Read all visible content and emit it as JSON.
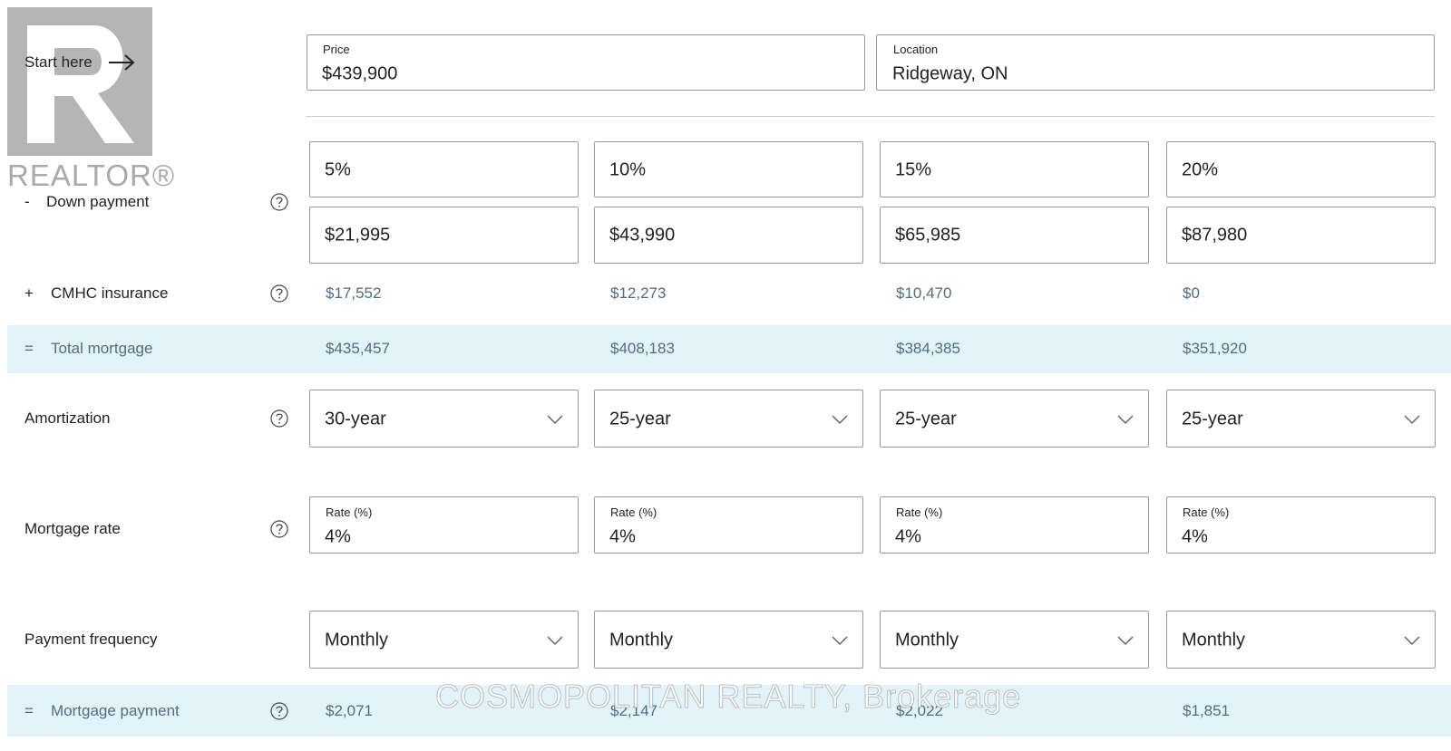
{
  "logo": "REALTOR®",
  "start_here": "Start here",
  "price": {
    "label": "Price",
    "value": "$439,900"
  },
  "location": {
    "label": "Location",
    "value": "Ridgeway, ON"
  },
  "rows": {
    "down_payment": {
      "sign": "-",
      "label": "Down payment"
    },
    "cmhc": {
      "sign": "+",
      "label": "CMHC insurance"
    },
    "total": {
      "sign": "=",
      "label": "Total mortgage"
    },
    "amortization": {
      "label": "Amortization"
    },
    "rate": {
      "label": "Mortgage rate"
    },
    "frequency": {
      "label": "Payment frequency"
    },
    "payment": {
      "sign": "=",
      "label": "Mortgage payment"
    }
  },
  "columns": [
    {
      "down_percent": "5%",
      "down_amount": "$21,995",
      "cmhc": "$17,552",
      "total": "$435,457",
      "amortization": "30-year",
      "rate_label": "Rate (%)",
      "rate": "4%",
      "frequency": "Monthly",
      "payment": "$2,071"
    },
    {
      "down_percent": "10%",
      "down_amount": "$43,990",
      "cmhc": "$12,273",
      "total": "$408,183",
      "amortization": "25-year",
      "rate_label": "Rate (%)",
      "rate": "4%",
      "frequency": "Monthly",
      "payment": "$2,147"
    },
    {
      "down_percent": "15%",
      "down_amount": "$65,985",
      "cmhc": "$10,470",
      "total": "$384,385",
      "amortization": "25-year",
      "rate_label": "Rate (%)",
      "rate": "4%",
      "frequency": "Monthly",
      "payment": "$2,022"
    },
    {
      "down_percent": "20%",
      "down_amount": "$87,980",
      "cmhc": "$0",
      "total": "$351,920",
      "amortization": "25-year",
      "rate_label": "Rate (%)",
      "rate": "4%",
      "frequency": "Monthly",
      "payment": "$1,851"
    }
  ],
  "watermark": "COSMOPOLITAN REALTY, Brokerage"
}
